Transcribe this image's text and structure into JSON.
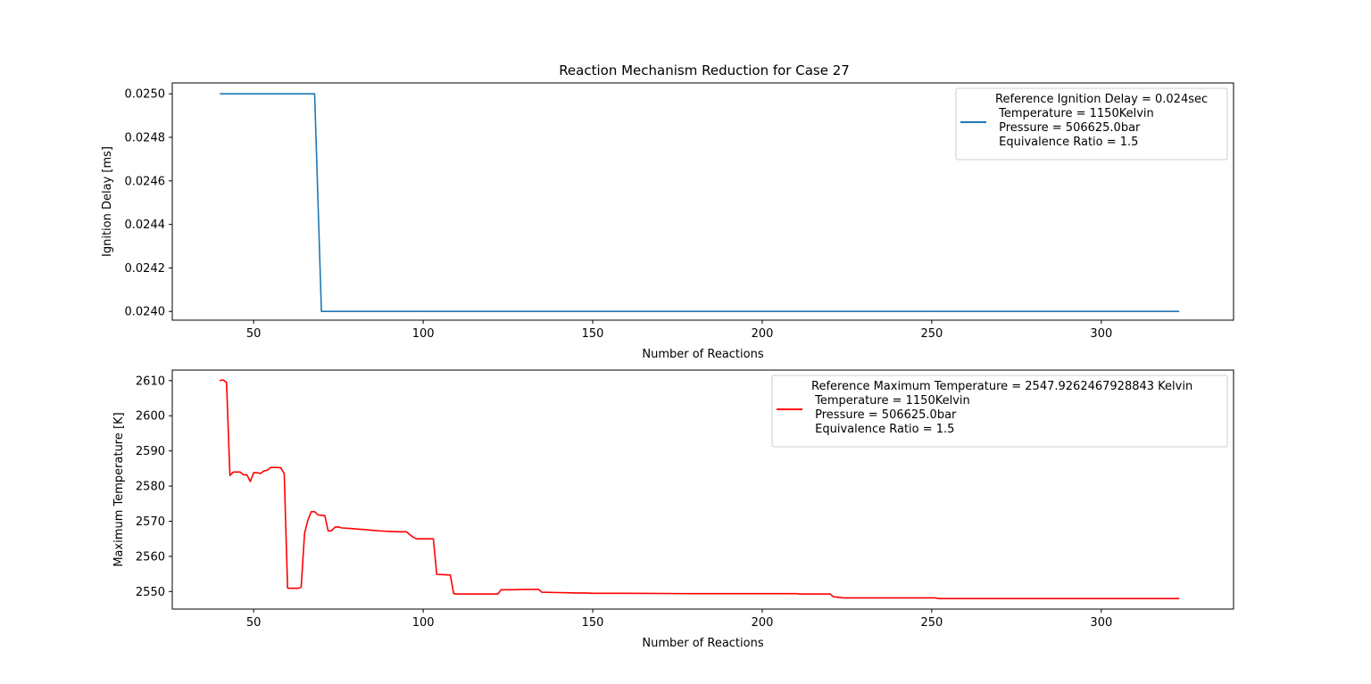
{
  "figure": {
    "title": "Reaction Mechanism Reduction for Case 27"
  },
  "chart_data": [
    {
      "type": "line",
      "title": "Reaction Mechanism Reduction for Case 27",
      "xlabel": "Number of Reactions",
      "ylabel": "Ignition Delay [ms]",
      "xlim": [
        26,
        339
      ],
      "ylim": [
        0.02396,
        0.02505
      ],
      "xticks": [
        50,
        100,
        150,
        200,
        250,
        300
      ],
      "xtick_labels": [
        "50",
        "100",
        "150",
        "200",
        "250",
        "300"
      ],
      "yticks": [
        0.024,
        0.0242,
        0.0244,
        0.0246,
        0.0248,
        0.025
      ],
      "ytick_labels": [
        "0.0240",
        "0.0242",
        "0.0244",
        "0.0246",
        "0.0248",
        "0.0250"
      ],
      "grid": false,
      "legend_position": "top-right",
      "series": [
        {
          "name": "Reference Ignition Delay = 0.024sec\n Temperature = 1150Kelvin\n Pressure = 506625.0bar\n Equivalence Ratio = 1.5",
          "color": "#1f77b4",
          "x": [
            40,
            68,
            70,
            323
          ],
          "y": [
            0.025,
            0.025,
            0.024,
            0.024
          ]
        }
      ]
    },
    {
      "type": "line",
      "title": "",
      "xlabel": "Number of Reactions",
      "ylabel": "Maximum Temperature [K]",
      "xlim": [
        26,
        339
      ],
      "ylim": [
        2545,
        2613
      ],
      "xticks": [
        50,
        100,
        150,
        200,
        250,
        300
      ],
      "xtick_labels": [
        "50",
        "100",
        "150",
        "200",
        "250",
        "300"
      ],
      "yticks": [
        2550,
        2560,
        2570,
        2580,
        2590,
        2600,
        2610
      ],
      "ytick_labels": [
        "2550",
        "2560",
        "2570",
        "2580",
        "2590",
        "2600",
        "2610"
      ],
      "grid": false,
      "legend_position": "top-right",
      "series": [
        {
          "name": "Reference Maximum Temperature = 2547.9262467928843 Kelvin\n Temperature = 1150Kelvin\n Pressure = 506625.0bar\n Equivalence Ratio = 1.5",
          "color": "#ff0000",
          "x": [
            40,
            41,
            42,
            43,
            44,
            45,
            46,
            47,
            48,
            49,
            50,
            51,
            52,
            53,
            54,
            55,
            56,
            57,
            58,
            59,
            60,
            61,
            62,
            63,
            64,
            65,
            66,
            67,
            68,
            69,
            70,
            71,
            72,
            73,
            74,
            75,
            76,
            78,
            80,
            83,
            85,
            88,
            90,
            93,
            95,
            97,
            98,
            100,
            103,
            104,
            106,
            108,
            109,
            110,
            115,
            122,
            123,
            126,
            130,
            134,
            135,
            140,
            145,
            148,
            150,
            160,
            180,
            200,
            210,
            211,
            220,
            221,
            222,
            224,
            225,
            230,
            240,
            250,
            251,
            252,
            253,
            260,
            280,
            300,
            323
          ],
          "y": [
            2610,
            2610.2,
            2609.5,
            2583,
            2584,
            2584,
            2584,
            2583.2,
            2583.2,
            2581.3,
            2583.8,
            2583.8,
            2583.6,
            2584.3,
            2584.5,
            2585.3,
            2585.3,
            2585.3,
            2585.2,
            2583.6,
            2551,
            2550.9,
            2550.9,
            2550.9,
            2551.2,
            2566.5,
            2570.3,
            2572.7,
            2572.7,
            2571.8,
            2571.7,
            2571.6,
            2567.2,
            2567.3,
            2568.3,
            2568.4,
            2568.1,
            2568,
            2567.8,
            2567.6,
            2567.4,
            2567.2,
            2567.1,
            2567,
            2567,
            2565.5,
            2565,
            2565,
            2565,
            2554.9,
            2554.8,
            2554.7,
            2549.4,
            2549.3,
            2549.3,
            2549.3,
            2550.5,
            2550.5,
            2550.6,
            2550.6,
            2549.8,
            2549.7,
            2549.6,
            2549.6,
            2549.5,
            2549.5,
            2549.4,
            2549.4,
            2549.4,
            2549.3,
            2549.3,
            2548.5,
            2548.4,
            2548.2,
            2548.2,
            2548.2,
            2548.2,
            2548.2,
            2548.2,
            2548,
            2548,
            2548,
            2548,
            2548,
            2548
          ]
        }
      ]
    }
  ]
}
